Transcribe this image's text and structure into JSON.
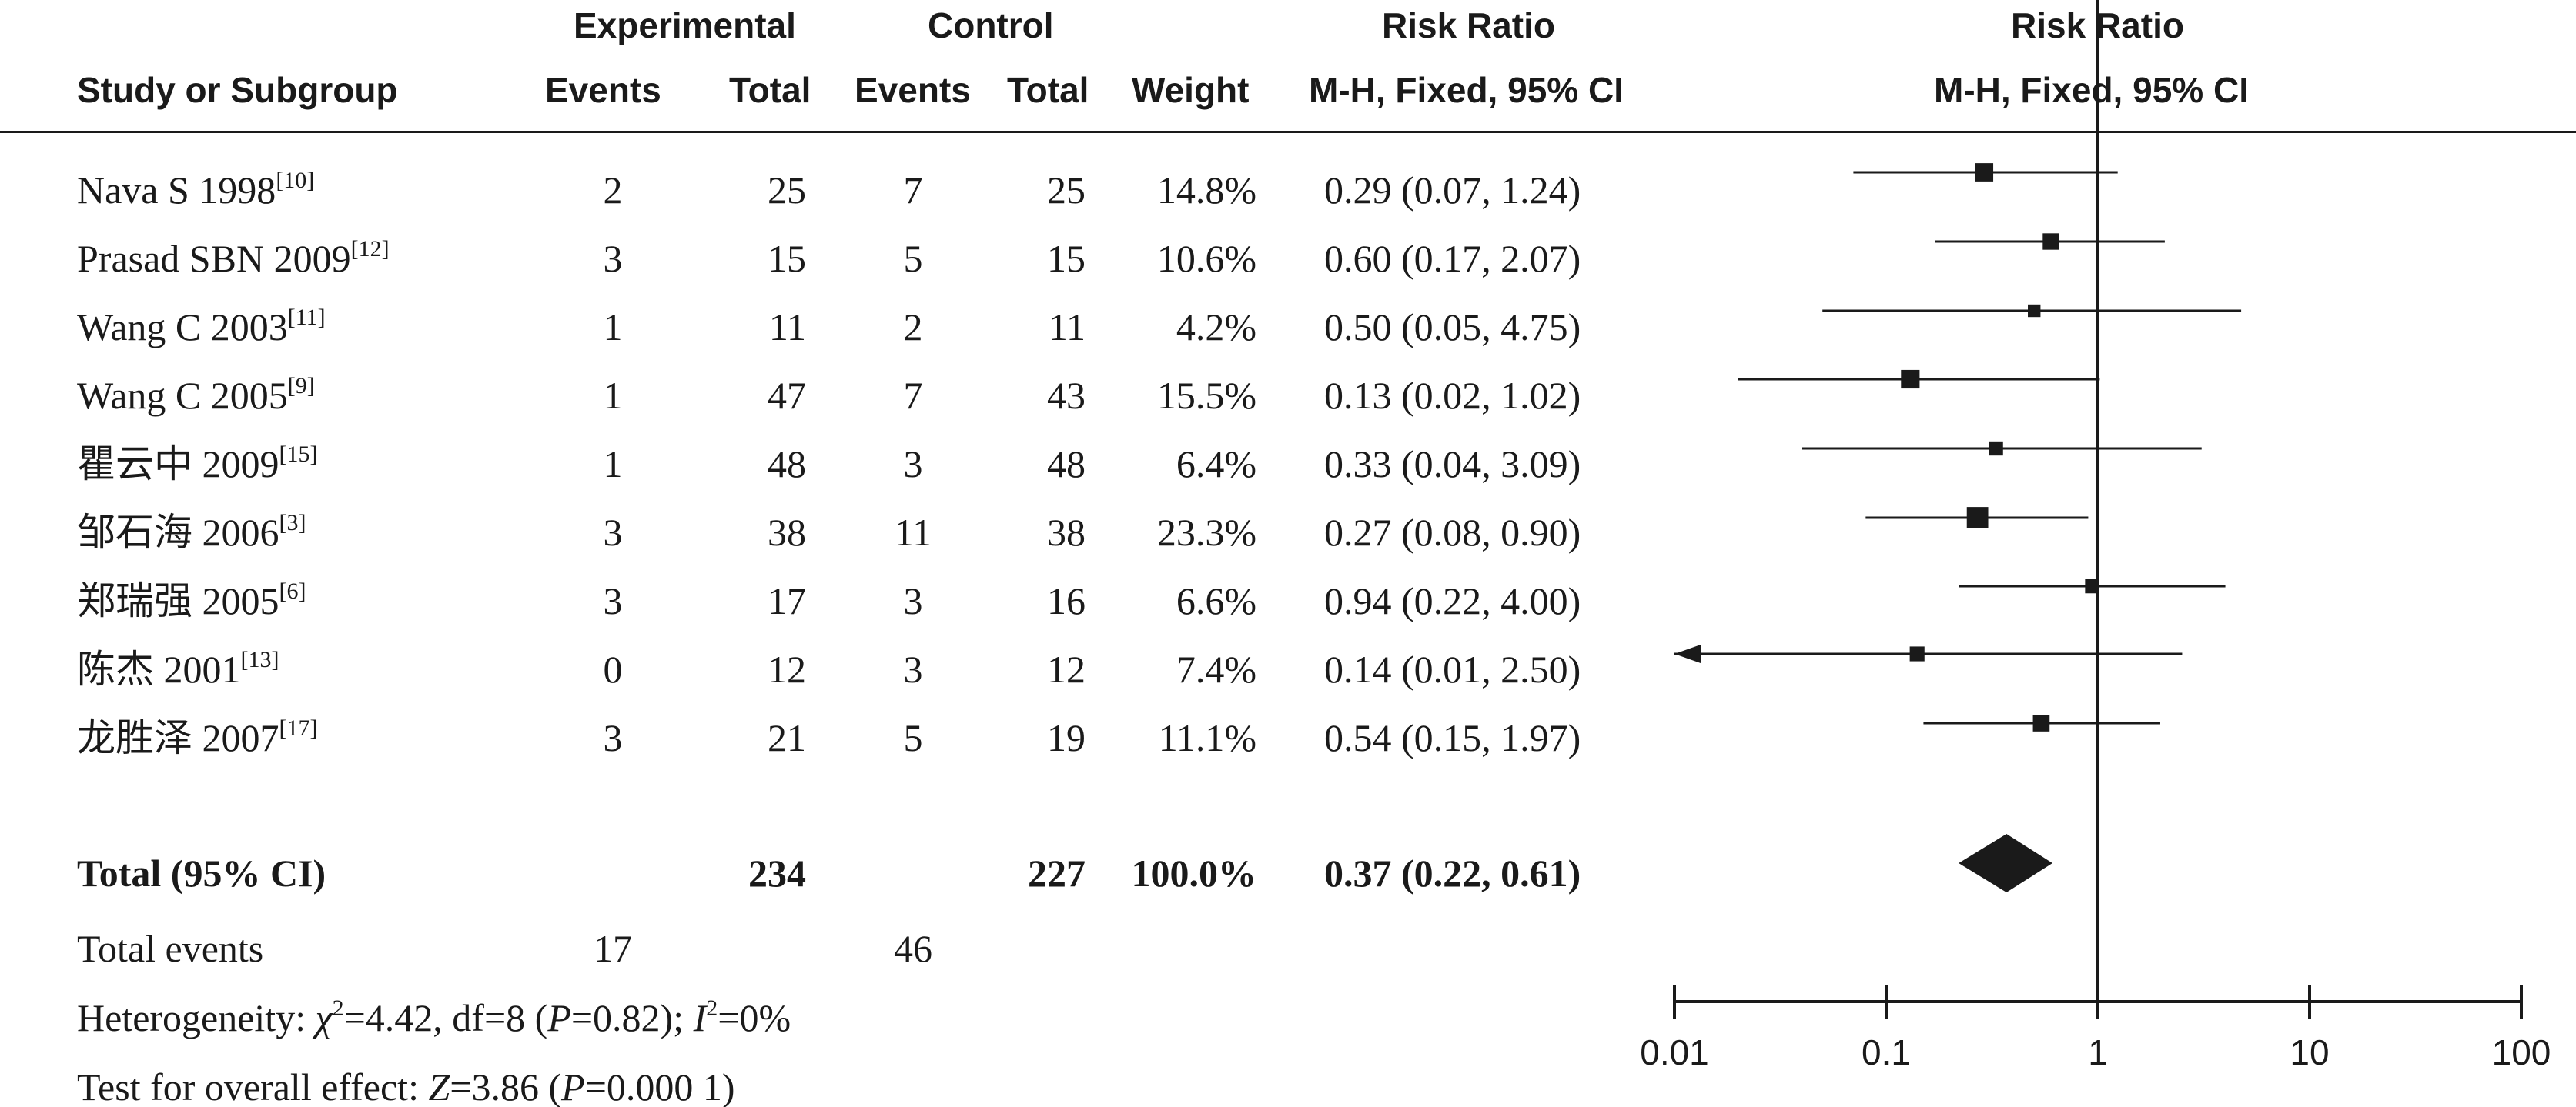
{
  "headers": {
    "experimental": "Experimental",
    "control": "Control",
    "risk_ratio_left": "Risk Ratio",
    "risk_ratio_right": "Risk Ratio",
    "study": "Study or Subgroup",
    "exp_events": "Events",
    "exp_total": "Total",
    "ctl_events": "Events",
    "ctl_total": "Total",
    "weight": "Weight",
    "method_left": "M-H, Fixed, 95% CI",
    "method_right": "M-H, Fixed, 95% CI"
  },
  "rows": [
    {
      "study": "Nava S 1998",
      "ref": "[10]",
      "exp_events": "2",
      "exp_total": "25",
      "ctl_events": "7",
      "ctl_total": "25",
      "weight": "14.8%",
      "ci_text": "0.29 (0.07, 1.24)"
    },
    {
      "study": "Prasad SBN 2009",
      "ref": "[12]",
      "exp_events": "3",
      "exp_total": "15",
      "ctl_events": "5",
      "ctl_total": "15",
      "weight": "10.6%",
      "ci_text": "0.60 (0.17, 2.07)"
    },
    {
      "study": "Wang C 2003",
      "ref": "[11]",
      "exp_events": "1",
      "exp_total": "11",
      "ctl_events": "2",
      "ctl_total": "11",
      "weight": "4.2%",
      "ci_text": "0.50 (0.05, 4.75)"
    },
    {
      "study": "Wang C 2005",
      "ref": "[9]",
      "exp_events": "1",
      "exp_total": "47",
      "ctl_events": "7",
      "ctl_total": "43",
      "weight": "15.5%",
      "ci_text": "0.13 (0.02, 1.02)"
    },
    {
      "study": "瞿云中 2009",
      "ref": "[15]",
      "exp_events": "1",
      "exp_total": "48",
      "ctl_events": "3",
      "ctl_total": "48",
      "weight": "6.4%",
      "ci_text": "0.33 (0.04, 3.09)"
    },
    {
      "study": "邹石海 2006",
      "ref": "[3]",
      "exp_events": "3",
      "exp_total": "38",
      "ctl_events": "11",
      "ctl_total": "38",
      "weight": "23.3%",
      "ci_text": "0.27 (0.08, 0.90)"
    },
    {
      "study": "郑瑞强 2005",
      "ref": "[6]",
      "exp_events": "3",
      "exp_total": "17",
      "ctl_events": "3",
      "ctl_total": "16",
      "weight": "6.6%",
      "ci_text": "0.94 (0.22, 4.00)"
    },
    {
      "study": "陈杰 2001",
      "ref": "[13]",
      "exp_events": "0",
      "exp_total": "12",
      "ctl_events": "3",
      "ctl_total": "12",
      "weight": "7.4%",
      "ci_text": "0.14 (0.01, 2.50)"
    },
    {
      "study": "龙胜泽 2007",
      "ref": "[17]",
      "exp_events": "3",
      "exp_total": "21",
      "ctl_events": "5",
      "ctl_total": "19",
      "weight": "11.1%",
      "ci_text": "0.54 (0.15, 1.97)"
    }
  ],
  "total": {
    "label": "Total (95% CI)",
    "exp_total": "234",
    "ctl_total": "227",
    "weight": "100.0%",
    "ci_text": "0.37 (0.22, 0.61)"
  },
  "total_events": {
    "label": "Total events",
    "exp": "17",
    "ctl": "46"
  },
  "heterogeneity": {
    "p1": "Heterogeneity: ",
    "chi": "χ",
    "p2": "=4.42, df=8 (",
    "P": "P",
    "p3": "=0.82); ",
    "I": "I",
    "p4": "=0%"
  },
  "overall": {
    "p1": "Test for overall effect: ",
    "Z": "Z",
    "p2": "=3.86 (",
    "P": "P",
    "p3": "=0.000 1)"
  },
  "chart_data": {
    "type": "forest",
    "x_scale": "log",
    "xlim": [
      0.01,
      100
    ],
    "ticks": [
      {
        "value": 0.01,
        "label": "0.01"
      },
      {
        "value": 0.1,
        "label": "0.1"
      },
      {
        "value": 1,
        "label": "1"
      },
      {
        "value": 10,
        "label": "10"
      },
      {
        "value": 100,
        "label": "100"
      }
    ],
    "reference_line": 1,
    "studies": [
      {
        "estimate": 0.29,
        "lower": 0.07,
        "upper": 1.24,
        "weight": 14.8
      },
      {
        "estimate": 0.6,
        "lower": 0.17,
        "upper": 2.07,
        "weight": 10.6
      },
      {
        "estimate": 0.5,
        "lower": 0.05,
        "upper": 4.75,
        "weight": 4.2
      },
      {
        "estimate": 0.13,
        "lower": 0.02,
        "upper": 1.02,
        "weight": 15.5
      },
      {
        "estimate": 0.33,
        "lower": 0.04,
        "upper": 3.09,
        "weight": 6.4
      },
      {
        "estimate": 0.27,
        "lower": 0.08,
        "upper": 0.9,
        "weight": 23.3
      },
      {
        "estimate": 0.94,
        "lower": 0.22,
        "upper": 4.0,
        "weight": 6.6
      },
      {
        "estimate": 0.14,
        "lower": 0.01,
        "upper": 2.5,
        "weight": 7.4,
        "lower_truncated": true
      },
      {
        "estimate": 0.54,
        "lower": 0.15,
        "upper": 1.97,
        "weight": 11.1
      }
    ],
    "pooled": {
      "estimate": 0.37,
      "lower": 0.22,
      "upper": 0.61
    }
  }
}
